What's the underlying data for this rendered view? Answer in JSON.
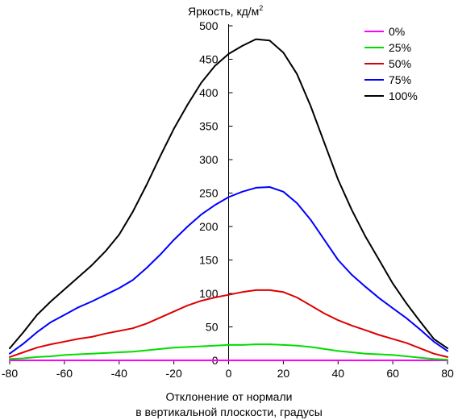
{
  "chart_data": {
    "type": "line",
    "ylabel": "Яркость, кд/м",
    "ylabel_sup": "2",
    "xlabel_line1": "Отклонение от нормали",
    "xlabel_line2": "в вертикальной плоскости, градусы",
    "xlim": [
      -80,
      80
    ],
    "ylim": [
      0,
      500
    ],
    "x_ticks": [
      -80,
      -60,
      -40,
      -20,
      0,
      20,
      40,
      60,
      80
    ],
    "y_ticks": [
      0,
      50,
      100,
      150,
      200,
      250,
      300,
      350,
      400,
      450,
      500
    ],
    "legend_position": "top-right",
    "grid": false,
    "x": [
      -80,
      -75,
      -70,
      -65,
      -60,
      -55,
      -50,
      -45,
      -40,
      -35,
      -30,
      -25,
      -20,
      -15,
      -10,
      -5,
      0,
      5,
      10,
      15,
      20,
      25,
      30,
      35,
      40,
      45,
      50,
      55,
      60,
      65,
      70,
      75,
      80
    ],
    "series": [
      {
        "name": "0%",
        "color": "#ff00ff",
        "values": [
          0,
          0,
          0,
          0,
          0,
          0,
          0,
          0,
          0,
          0,
          0,
          0,
          0,
          0,
          0,
          0,
          0,
          0,
          0,
          0,
          0,
          0,
          0,
          0,
          0,
          0,
          0,
          0,
          0,
          0,
          0,
          0,
          0
        ]
      },
      {
        "name": "25%",
        "color": "#00dd00",
        "values": [
          2,
          3,
          5,
          6,
          8,
          9,
          10,
          11,
          12,
          13,
          15,
          17,
          19,
          20,
          21,
          22,
          23,
          23,
          24,
          24,
          23,
          22,
          20,
          17,
          14,
          12,
          10,
          9,
          8,
          6,
          4,
          2,
          1
        ]
      },
      {
        "name": "50%",
        "color": "#dd0000",
        "values": [
          5,
          12,
          19,
          24,
          28,
          32,
          35,
          40,
          44,
          48,
          55,
          64,
          73,
          82,
          89,
          94,
          98,
          102,
          105,
          105,
          102,
          94,
          82,
          70,
          60,
          52,
          45,
          38,
          32,
          26,
          18,
          10,
          5
        ]
      },
      {
        "name": "75%",
        "color": "#0000ff",
        "values": [
          10,
          25,
          42,
          57,
          68,
          79,
          88,
          98,
          108,
          120,
          138,
          158,
          180,
          200,
          218,
          232,
          244,
          252,
          258,
          259,
          252,
          235,
          210,
          180,
          150,
          128,
          110,
          93,
          78,
          63,
          46,
          28,
          14
        ]
      },
      {
        "name": "100%",
        "color": "#000000",
        "values": [
          18,
          42,
          68,
          88,
          106,
          124,
          142,
          163,
          188,
          222,
          262,
          305,
          346,
          382,
          415,
          440,
          458,
          470,
          480,
          478,
          460,
          428,
          380,
          325,
          270,
          225,
          185,
          150,
          115,
          85,
          58,
          32,
          18
        ]
      }
    ]
  }
}
